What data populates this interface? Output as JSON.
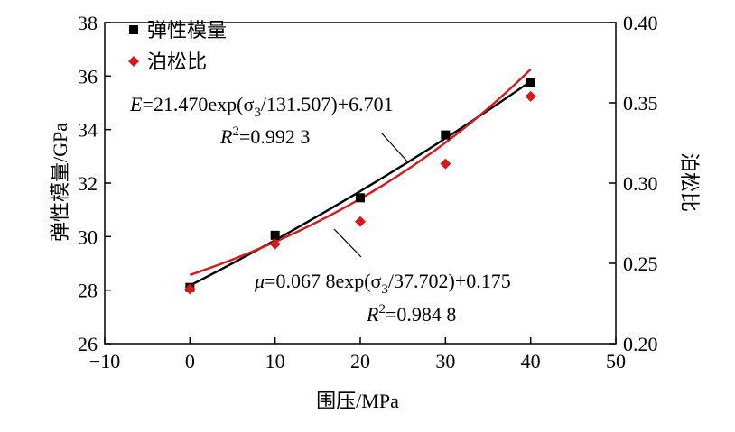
{
  "chart_data": {
    "type": "scatter",
    "xlabel": "围压/MPa",
    "ylabel_left": "弹性模量/GPa",
    "ylabel_right": "泊松比",
    "xlim": [
      -10,
      50
    ],
    "ylim_left": [
      26,
      38
    ],
    "ylim_right": [
      0.2,
      0.4
    ],
    "x_ticks": [
      -10,
      0,
      10,
      20,
      30,
      40,
      50
    ],
    "y_ticks_left": [
      26,
      28,
      30,
      32,
      34,
      36,
      38
    ],
    "y_ticks_right": [
      "0.20",
      "0.25",
      "0.30",
      "0.35",
      "0.40"
    ],
    "grid": false,
    "legend_position": "top-left",
    "series": [
      {
        "name": "弹性模量",
        "axis": "left",
        "marker": "square",
        "color": "#000000",
        "x": [
          0,
          10,
          20,
          30,
          40
        ],
        "y": [
          28.1,
          30.05,
          31.45,
          33.8,
          35.75
        ],
        "fit": {
          "a": 21.47,
          "b": 131.507,
          "c": 6.701
        },
        "fit_color": "#000000"
      },
      {
        "name": "泊松比",
        "axis": "right",
        "marker": "diamond",
        "color": "#d7191c",
        "x": [
          0,
          10,
          20,
          30,
          40
        ],
        "y": [
          0.234,
          0.262,
          0.276,
          0.312,
          0.354
        ],
        "fit": {
          "a": 0.0678,
          "b": 37.702,
          "c": 0.175
        },
        "fit_color": "#d7191c"
      }
    ],
    "annotations": {
      "eq1": {
        "lhs": "E",
        "line": "=21.470exp(σ",
        "sub": "3",
        "tail": "/131.507)+6.701",
        "r2_label": "R",
        "r2_sup": "2",
        "r2_value": "=0.992 3"
      },
      "eq2": {
        "lhs": "μ",
        "line": "=0.067 8exp(σ",
        "sub": "3",
        "tail": "/37.702)+0.175",
        "r2_label": "R",
        "r2_sup": "2",
        "r2_value": "=0.984 8"
      }
    }
  }
}
